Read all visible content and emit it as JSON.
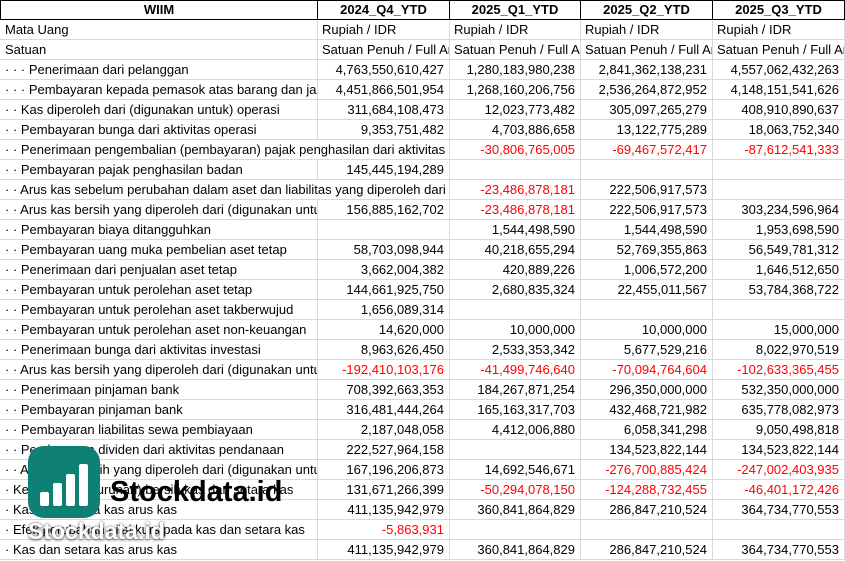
{
  "header": {
    "ticker": "WIIM",
    "columns": [
      "2024_Q4_YTD",
      "2025_Q1_YTD",
      "2025_Q2_YTD",
      "2025_Q3_YTD"
    ]
  },
  "meta_rows": [
    {
      "label": "Mata Uang",
      "values": [
        "Rupiah / IDR",
        "Rupiah / IDR",
        "Rupiah / IDR",
        "Rupiah / IDR"
      ]
    },
    {
      "label": "Satuan",
      "values": [
        "Satuan Penuh / Full Amount",
        "Satuan Penuh / Full Amount",
        "Satuan Penuh / Full Amount",
        "Satuan Penuh / Full Amount"
      ]
    }
  ],
  "rows": [
    {
      "label": "· · · Penerimaan dari pelanggan",
      "values": [
        "4,763,550,610,427",
        "1,280,183,980,238",
        "2,841,362,138,231",
        "4,557,062,432,263"
      ]
    },
    {
      "label": "· · · Pembayaran kepada pemasok atas barang dan jasa",
      "values": [
        "4,451,866,501,954",
        "1,268,160,206,756",
        "2,536,264,872,952",
        "4,148,151,541,626"
      ]
    },
    {
      "label": "· · Kas diperoleh dari (digunakan untuk) operasi",
      "values": [
        "311,684,108,473",
        "12,023,773,482",
        "305,097,265,279",
        "408,910,890,637"
      ]
    },
    {
      "label": "· · Pembayaran bunga dari aktivitas operasi",
      "values": [
        "9,353,751,482",
        "4,703,886,658",
        "13,122,775,289",
        "18,063,752,340"
      ]
    },
    {
      "label": "· · Penerimaan pengembalian (pembayaran) pajak penghasilan dari aktivitas operasi",
      "values": [
        "",
        "-30,806,765,005",
        "-69,467,572,417",
        "-87,612,541,333"
      ]
    },
    {
      "label": "· · Pembayaran pajak penghasilan badan",
      "values": [
        "145,445,194,289",
        "",
        "",
        ""
      ]
    },
    {
      "label": "· · Arus kas sebelum perubahan dalam aset dan liabilitas yang diperoleh dari operasi",
      "values": [
        "",
        "-23,486,878,181",
        "222,506,917,573",
        ""
      ]
    },
    {
      "label": "· · Arus kas bersih yang diperoleh dari (digunakan untuk) aktivitas operasi",
      "values": [
        "156,885,162,702",
        "-23,486,878,181",
        "222,506,917,573",
        "303,234,596,964"
      ]
    },
    {
      "label": "· · Pembayaran biaya ditangguhkan",
      "values": [
        "",
        "1,544,498,590",
        "1,544,498,590",
        "1,953,698,590"
      ]
    },
    {
      "label": "· · Pembayaran uang muka pembelian aset tetap",
      "values": [
        "58,703,098,944",
        "40,218,655,294",
        "52,769,355,863",
        "56,549,781,312"
      ]
    },
    {
      "label": "· · Penerimaan dari penjualan aset tetap",
      "values": [
        "3,662,004,382",
        "420,889,226",
        "1,006,572,200",
        "1,646,512,650"
      ]
    },
    {
      "label": "· · Pembayaran untuk perolehan aset tetap",
      "values": [
        "144,661,925,750",
        "2,680,835,324",
        "22,455,011,567",
        "53,784,368,722"
      ]
    },
    {
      "label": "· · Pembayaran untuk perolehan aset takberwujud",
      "values": [
        "1,656,089,314",
        "",
        "",
        ""
      ]
    },
    {
      "label": "· · Pembayaran untuk perolehan aset non-keuangan",
      "values": [
        "14,620,000",
        "10,000,000",
        "10,000,000",
        "15,000,000"
      ]
    },
    {
      "label": "· · Penerimaan bunga dari aktivitas investasi",
      "values": [
        "8,963,626,450",
        "2,533,353,342",
        "5,677,529,216",
        "8,022,970,519"
      ]
    },
    {
      "label": "· · Arus kas bersih yang diperoleh dari (digunakan untuk) aktivitas investasi",
      "values": [
        "-192,410,103,176",
        "-41,499,746,640",
        "-70,094,764,604",
        "-102,633,365,455"
      ]
    },
    {
      "label": "· · Penerimaan pinjaman bank",
      "values": [
        "708,392,663,353",
        "184,267,871,254",
        "296,350,000,000",
        "532,350,000,000"
      ]
    },
    {
      "label": "· · Pembayaran pinjaman bank",
      "values": [
        "316,481,444,264",
        "165,163,317,703",
        "432,468,721,982",
        "635,778,082,973"
      ]
    },
    {
      "label": "· · Pembayaran liabilitas sewa pembiayaan",
      "values": [
        "2,187,048,058",
        "4,412,006,880",
        "6,058,341,298",
        "9,050,498,818"
      ]
    },
    {
      "label": "· · Pembayaran dividen dari aktivitas pendanaan",
      "values": [
        "222,527,964,158",
        "",
        "134,523,822,144",
        "134,523,822,144"
      ]
    },
    {
      "label": "· · Arus kas bersih yang diperoleh dari (digunakan untuk) aktivitas pendanaan",
      "values": [
        "167,196,206,873",
        "14,692,546,671",
        "-276,700,885,424",
        "-247,002,403,935"
      ]
    },
    {
      "label": "· Kenaikan (penurunan) bersih kas dan setara kas",
      "values": [
        "131,671,266,399",
        "-50,294,078,150",
        "-124,288,732,455",
        "-46,401,172,426"
      ]
    },
    {
      "label": "· Kas dan setara kas arus kas",
      "values": [
        "411,135,942,979",
        "360,841,864,829",
        "286,847,210,524",
        "364,734,770,553"
      ]
    },
    {
      "label": "· Efek perubahan nilai kurs pada kas dan setara kas",
      "values": [
        "-5,863,931",
        "",
        "",
        ""
      ]
    },
    {
      "label": "· Kas dan setara kas arus kas",
      "values": [
        "411,135,942,979",
        "360,841,864,829",
        "286,847,210,524",
        "364,734,770,553"
      ]
    }
  ],
  "watermark": {
    "brand": "Stockdata.id",
    "brand_small": "Stockdata.id",
    "icon": "bar-chart-icon",
    "logo_color": "#0e8174"
  },
  "colors": {
    "negative": "#ff0000",
    "gridline": "#d9d9d9",
    "header_border": "#000000",
    "text": "#000000",
    "background": "#ffffff"
  }
}
